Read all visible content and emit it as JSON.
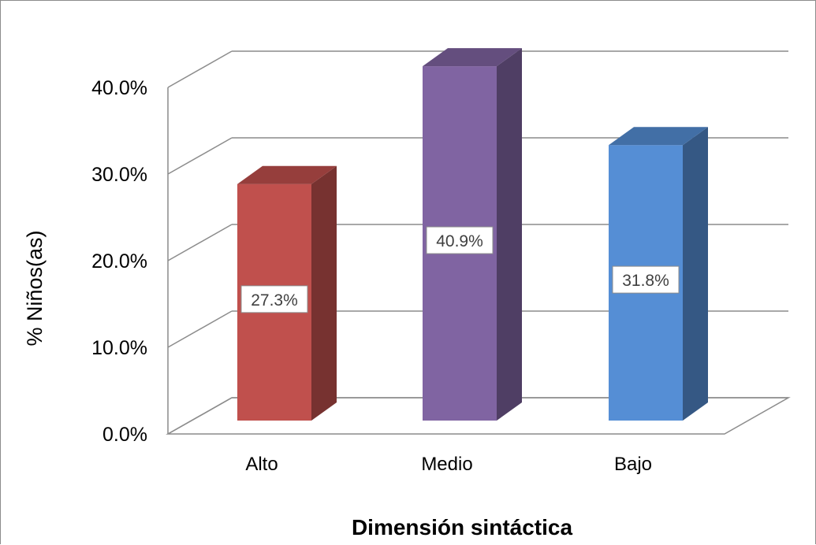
{
  "chart_data": {
    "type": "bar",
    "style": "3d-column",
    "title": "",
    "xlabel": "Dimensión sintáctica",
    "ylabel": "% Niños(as)",
    "categories": [
      "Alto",
      "Medio",
      "Bajo"
    ],
    "values": [
      27.3,
      40.9,
      31.8
    ],
    "data_labels": [
      "27.3%",
      "40.9%",
      "31.8%"
    ],
    "y_ticks": [
      "0.0%",
      "10.0%",
      "20.0%",
      "30.0%",
      "40.0%"
    ],
    "ylim": [
      0,
      40
    ],
    "grid": true,
    "legend": "none",
    "colors": [
      "#C0504D",
      "#8064A2",
      "#558ED5"
    ]
  }
}
